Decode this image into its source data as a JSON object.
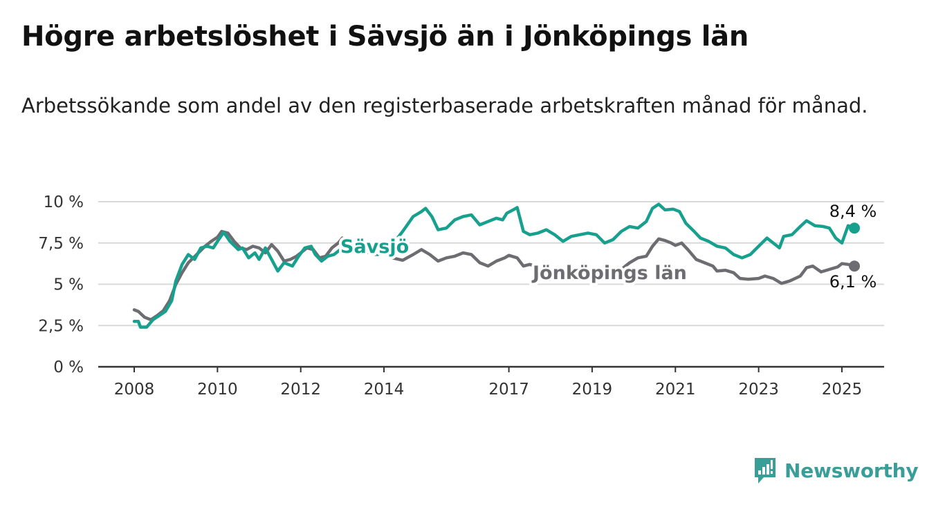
{
  "title": "Högre arbetslöshet i Sävsjö än i Jönköpings län",
  "subtitle": "Arbetssökande som andel av den registerbaserade arbetskraften månad för månad.",
  "brand": {
    "name": "Newsworthy",
    "icon": "newsworthy-logo-icon",
    "color": "#3a9e98"
  },
  "chart_data": {
    "type": "line",
    "ylim": [
      0,
      10
    ],
    "xlim": [
      2007.9,
      2026.0
    ],
    "y_ticks": [
      {
        "value": 0,
        "label": "0 %"
      },
      {
        "value": 2.5,
        "label": "2,5 %"
      },
      {
        "value": 5,
        "label": "5 %"
      },
      {
        "value": 7.5,
        "label": "7,5 %"
      },
      {
        "value": 10,
        "label": "10 %"
      }
    ],
    "x_ticks": [
      {
        "value": 2008,
        "label": "2008"
      },
      {
        "value": 2010,
        "label": "2010"
      },
      {
        "value": 2012,
        "label": "2012"
      },
      {
        "value": 2014,
        "label": "2014"
      },
      {
        "value": 2017,
        "label": "2017"
      },
      {
        "value": 2019,
        "label": "2019"
      },
      {
        "value": 2021,
        "label": "2021"
      },
      {
        "value": 2023,
        "label": "2023"
      },
      {
        "value": 2025,
        "label": "2025"
      }
    ],
    "grid": true,
    "series": [
      {
        "name": "Jönköpings län",
        "color": "#6d6c70",
        "end_label": "6,1 %",
        "points": [
          [
            2008.0,
            3.45
          ],
          [
            2008.1,
            3.35
          ],
          [
            2008.25,
            3.0
          ],
          [
            2008.4,
            2.85
          ],
          [
            2008.55,
            3.1
          ],
          [
            2008.7,
            3.4
          ],
          [
            2008.85,
            4.0
          ],
          [
            2009.0,
            5.0
          ],
          [
            2009.15,
            5.7
          ],
          [
            2009.3,
            6.3
          ],
          [
            2009.5,
            6.8
          ],
          [
            2009.7,
            7.3
          ],
          [
            2009.85,
            7.6
          ],
          [
            2010.0,
            7.85
          ],
          [
            2010.1,
            8.2
          ],
          [
            2010.25,
            8.1
          ],
          [
            2010.4,
            7.6
          ],
          [
            2010.55,
            7.2
          ],
          [
            2010.7,
            7.1
          ],
          [
            2010.85,
            7.3
          ],
          [
            2011.0,
            7.2
          ],
          [
            2011.15,
            6.9
          ],
          [
            2011.3,
            7.4
          ],
          [
            2011.45,
            7.0
          ],
          [
            2011.6,
            6.4
          ],
          [
            2011.75,
            6.5
          ],
          [
            2011.9,
            6.7
          ],
          [
            2012.0,
            6.9
          ],
          [
            2012.15,
            7.2
          ],
          [
            2012.3,
            7.1
          ],
          [
            2012.45,
            6.6
          ],
          [
            2012.6,
            6.7
          ],
          [
            2012.75,
            7.2
          ],
          [
            2012.9,
            7.5
          ],
          [
            2013.0,
            7.8
          ],
          [
            2013.2,
            7.5
          ],
          [
            2013.5,
            7.0
          ],
          [
            2013.8,
            6.8
          ],
          [
            2014.0,
            6.9
          ],
          [
            2014.2,
            6.6
          ],
          [
            2014.45,
            6.45
          ],
          [
            2014.7,
            6.8
          ],
          [
            2014.9,
            7.1
          ],
          [
            2015.1,
            6.8
          ],
          [
            2015.3,
            6.4
          ],
          [
            2015.5,
            6.6
          ],
          [
            2015.7,
            6.7
          ],
          [
            2015.9,
            6.9
          ],
          [
            2016.1,
            6.8
          ],
          [
            2016.3,
            6.3
          ],
          [
            2016.5,
            6.1
          ],
          [
            2016.7,
            6.4
          ],
          [
            2016.9,
            6.6
          ],
          [
            2017.0,
            6.75
          ],
          [
            2017.2,
            6.6
          ],
          [
            2017.35,
            6.1
          ],
          [
            2017.5,
            6.2
          ],
          [
            2017.8,
            6.0
          ],
          [
            2018.2,
            5.6
          ],
          [
            2018.6,
            5.3
          ],
          [
            2019.0,
            5.5
          ],
          [
            2019.4,
            5.7
          ],
          [
            2019.7,
            5.9
          ],
          [
            2019.9,
            6.3
          ],
          [
            2020.1,
            6.6
          ],
          [
            2020.3,
            6.7
          ],
          [
            2020.45,
            7.3
          ],
          [
            2020.6,
            7.75
          ],
          [
            2020.75,
            7.65
          ],
          [
            2020.9,
            7.5
          ],
          [
            2021.0,
            7.35
          ],
          [
            2021.15,
            7.5
          ],
          [
            2021.3,
            7.1
          ],
          [
            2021.5,
            6.5
          ],
          [
            2021.7,
            6.3
          ],
          [
            2021.9,
            6.1
          ],
          [
            2022.0,
            5.8
          ],
          [
            2022.2,
            5.85
          ],
          [
            2022.4,
            5.7
          ],
          [
            2022.55,
            5.35
          ],
          [
            2022.75,
            5.3
          ],
          [
            2023.0,
            5.35
          ],
          [
            2023.15,
            5.5
          ],
          [
            2023.35,
            5.35
          ],
          [
            2023.55,
            5.05
          ],
          [
            2023.75,
            5.2
          ],
          [
            2024.0,
            5.5
          ],
          [
            2024.15,
            6.0
          ],
          [
            2024.3,
            6.1
          ],
          [
            2024.5,
            5.75
          ],
          [
            2024.7,
            5.9
          ],
          [
            2024.9,
            6.05
          ],
          [
            2025.0,
            6.25
          ],
          [
            2025.15,
            6.2
          ],
          [
            2025.3,
            6.1
          ]
        ]
      },
      {
        "name": "Sävsjö",
        "color": "#16a08d",
        "end_label": "8,4 %",
        "points": [
          [
            2008.0,
            2.75
          ],
          [
            2008.1,
            2.75
          ],
          [
            2008.15,
            2.4
          ],
          [
            2008.3,
            2.4
          ],
          [
            2008.45,
            2.85
          ],
          [
            2008.6,
            3.1
          ],
          [
            2008.75,
            3.35
          ],
          [
            2008.9,
            4.0
          ],
          [
            2009.0,
            5.2
          ],
          [
            2009.15,
            6.2
          ],
          [
            2009.3,
            6.8
          ],
          [
            2009.45,
            6.5
          ],
          [
            2009.6,
            7.2
          ],
          [
            2009.75,
            7.3
          ],
          [
            2009.9,
            7.2
          ],
          [
            2010.0,
            7.6
          ],
          [
            2010.15,
            8.15
          ],
          [
            2010.3,
            7.6
          ],
          [
            2010.5,
            7.1
          ],
          [
            2010.6,
            7.2
          ],
          [
            2010.75,
            6.6
          ],
          [
            2010.9,
            6.9
          ],
          [
            2011.0,
            6.5
          ],
          [
            2011.15,
            7.2
          ],
          [
            2011.3,
            6.5
          ],
          [
            2011.45,
            5.8
          ],
          [
            2011.6,
            6.3
          ],
          [
            2011.8,
            6.1
          ],
          [
            2011.95,
            6.7
          ],
          [
            2012.1,
            7.2
          ],
          [
            2012.25,
            7.3
          ],
          [
            2012.35,
            6.8
          ],
          [
            2012.5,
            6.4
          ],
          [
            2012.65,
            6.7
          ],
          [
            2012.8,
            6.8
          ],
          [
            2012.95,
            7.1
          ],
          [
            2013.2,
            7.3
          ],
          [
            2013.5,
            7.4
          ],
          [
            2013.7,
            7.1
          ],
          [
            2013.85,
            6.8
          ],
          [
            2014.0,
            7.1
          ],
          [
            2014.2,
            7.4
          ],
          [
            2014.45,
            8.2
          ],
          [
            2014.7,
            9.1
          ],
          [
            2014.9,
            9.4
          ],
          [
            2015.0,
            9.6
          ],
          [
            2015.15,
            9.1
          ],
          [
            2015.3,
            8.3
          ],
          [
            2015.5,
            8.4
          ],
          [
            2015.7,
            8.9
          ],
          [
            2015.9,
            9.1
          ],
          [
            2016.1,
            9.2
          ],
          [
            2016.3,
            8.6
          ],
          [
            2016.5,
            8.8
          ],
          [
            2016.7,
            9.0
          ],
          [
            2016.85,
            8.9
          ],
          [
            2016.95,
            9.3
          ],
          [
            2017.1,
            9.5
          ],
          [
            2017.2,
            9.65
          ],
          [
            2017.35,
            8.2
          ],
          [
            2017.5,
            8.0
          ],
          [
            2017.7,
            8.1
          ],
          [
            2017.9,
            8.3
          ],
          [
            2018.1,
            8.0
          ],
          [
            2018.3,
            7.6
          ],
          [
            2018.5,
            7.9
          ],
          [
            2018.7,
            8.0
          ],
          [
            2018.9,
            8.1
          ],
          [
            2019.1,
            8.0
          ],
          [
            2019.3,
            7.5
          ],
          [
            2019.5,
            7.7
          ],
          [
            2019.7,
            8.2
          ],
          [
            2019.9,
            8.5
          ],
          [
            2020.1,
            8.4
          ],
          [
            2020.3,
            8.8
          ],
          [
            2020.45,
            9.6
          ],
          [
            2020.6,
            9.85
          ],
          [
            2020.75,
            9.5
          ],
          [
            2020.95,
            9.55
          ],
          [
            2021.1,
            9.4
          ],
          [
            2021.25,
            8.7
          ],
          [
            2021.45,
            8.2
          ],
          [
            2021.6,
            7.8
          ],
          [
            2021.8,
            7.6
          ],
          [
            2022.0,
            7.3
          ],
          [
            2022.2,
            7.2
          ],
          [
            2022.4,
            6.8
          ],
          [
            2022.6,
            6.6
          ],
          [
            2022.8,
            6.8
          ],
          [
            2023.0,
            7.3
          ],
          [
            2023.2,
            7.8
          ],
          [
            2023.35,
            7.5
          ],
          [
            2023.5,
            7.2
          ],
          [
            2023.6,
            7.9
          ],
          [
            2023.8,
            8.0
          ],
          [
            2024.0,
            8.5
          ],
          [
            2024.15,
            8.85
          ],
          [
            2024.35,
            8.55
          ],
          [
            2024.55,
            8.5
          ],
          [
            2024.7,
            8.4
          ],
          [
            2024.85,
            7.8
          ],
          [
            2025.0,
            7.5
          ],
          [
            2025.15,
            8.55
          ],
          [
            2025.3,
            8.4
          ]
        ]
      }
    ]
  }
}
